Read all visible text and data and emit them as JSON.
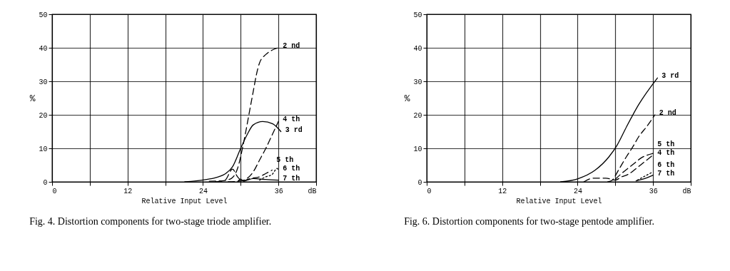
{
  "chart_data": [
    {
      "type": "line",
      "title": "Fig. 4. Distortion components for two-stage triode amplifier.",
      "xlabel": "Relative Input Level",
      "ylabel": "%",
      "xlim": [
        0,
        42
      ],
      "ylim": [
        0,
        50
      ],
      "xticks": [
        0,
        {
          "value": 6,
          "label": null
        },
        12,
        {
          "value": 18,
          "label": null
        },
        24,
        {
          "value": 30,
          "label": null
        },
        36,
        {
          "value": 42,
          "label": "dB"
        }
      ],
      "yticks": [
        0,
        10,
        20,
        30,
        40,
        50
      ],
      "grid": true,
      "series": [
        {
          "name": "2 nd",
          "color": "#000000",
          "line_style": "dashed",
          "x": [
            25,
            27,
            28.5,
            29.5,
            30.5,
            31.5,
            32,
            32.5,
            33,
            34,
            35,
            36
          ],
          "values": [
            0.2,
            0.3,
            1,
            4,
            12,
            22,
            27,
            32,
            35.5,
            38,
            39.3,
            40
          ]
        },
        {
          "name": "3 rd",
          "color": "#000000",
          "line_style": "solid",
          "x": [
            21.1,
            24.2,
            26.1,
            27.7,
            28.7,
            30,
            31,
            32,
            33.5,
            35.1,
            36.4
          ],
          "values": [
            0,
            0.6,
            1.3,
            2.6,
            4.5,
            10,
            14,
            17,
            18,
            17.3,
            15
          ]
        },
        {
          "name": "4 th",
          "color": "#000000",
          "line_style": "dashed",
          "x": [
            28,
            30,
            31,
            32,
            33,
            34,
            35,
            36
          ],
          "values": [
            0,
            0.3,
            1,
            3,
            6.5,
            10,
            14,
            18
          ]
        },
        {
          "name": "5 th",
          "color": "#000000",
          "line_style": "dashed",
          "x": [
            26,
            27.5,
            28.7,
            29.5,
            30.3,
            31.5,
            33,
            34,
            35
          ],
          "values": [
            0,
            0.5,
            3.8,
            1.5,
            0.3,
            1,
            1.5,
            2.5,
            3.5
          ]
        },
        {
          "name": "6 th",
          "color": "#000000",
          "line_style": "dotted",
          "x": [
            33,
            34,
            35,
            35.8,
            36
          ],
          "values": [
            0.5,
            1.5,
            2.2,
            4,
            3.5
          ]
        },
        {
          "name": "7 th",
          "color": "#000000",
          "line_style": "solid",
          "x": [
            29.5,
            30,
            30.5,
            31,
            32,
            34,
            36
          ],
          "values": [
            0,
            0.8,
            0.2,
            0.5,
            1,
            0.7,
            0.5
          ]
        }
      ]
    },
    {
      "type": "line",
      "title": "Fig. 6. Distortion components for two-stage pentode amplifier.",
      "xlabel": "Relative Input Level",
      "ylabel": "%",
      "xlim": [
        0,
        42
      ],
      "ylim": [
        0,
        50
      ],
      "xticks": [
        0,
        {
          "value": 6,
          "label": null
        },
        12,
        {
          "value": 18,
          "label": null
        },
        24,
        {
          "value": 30,
          "label": null
        },
        36,
        {
          "value": 42,
          "label": "dB"
        }
      ],
      "yticks": [
        0,
        10,
        20,
        30,
        40,
        50
      ],
      "grid": true,
      "series": [
        {
          "name": "2 nd",
          "color": "#000000",
          "line_style": "dashed",
          "x": [
            28.8,
            29.5,
            30.5,
            31.8,
            32.8,
            33.7,
            35,
            36.3
          ],
          "values": [
            0,
            0.5,
            3.5,
            7.6,
            10.5,
            13.4,
            16.5,
            20
          ]
        },
        {
          "name": "3 rd",
          "color": "#000000",
          "line_style": "solid",
          "x": [
            21.3,
            24,
            26.8,
            29,
            30.3,
            31.8,
            33.7,
            36.7
          ],
          "values": [
            0,
            0.9,
            3.5,
            7.5,
            11,
            16.5,
            23,
            31
          ]
        },
        {
          "name": "4 th",
          "color": "#000000",
          "line_style": "dashed",
          "x": [
            25,
            26.5,
            28.5,
            30,
            31,
            32,
            33,
            34,
            35,
            36
          ],
          "values": [
            0,
            1.1,
            1.1,
            0.5,
            1.5,
            2.2,
            3.5,
            5,
            6.5,
            8
          ]
        },
        {
          "name": "5 th",
          "color": "#000000",
          "line_style": "dashed",
          "x": [
            30,
            31,
            32,
            33,
            34,
            36
          ],
          "values": [
            0.8,
            2.5,
            4,
            5.5,
            7,
            8.5
          ]
        },
        {
          "name": "6 th",
          "color": "#000000",
          "line_style": "dotted",
          "x": [
            33.5,
            35,
            36
          ],
          "values": [
            0.5,
            2,
            3
          ]
        },
        {
          "name": "7 th",
          "color": "#000000",
          "line_style": "solid",
          "x": [
            33.3,
            35,
            36
          ],
          "values": [
            0.3,
            1.2,
            2
          ]
        }
      ]
    }
  ]
}
